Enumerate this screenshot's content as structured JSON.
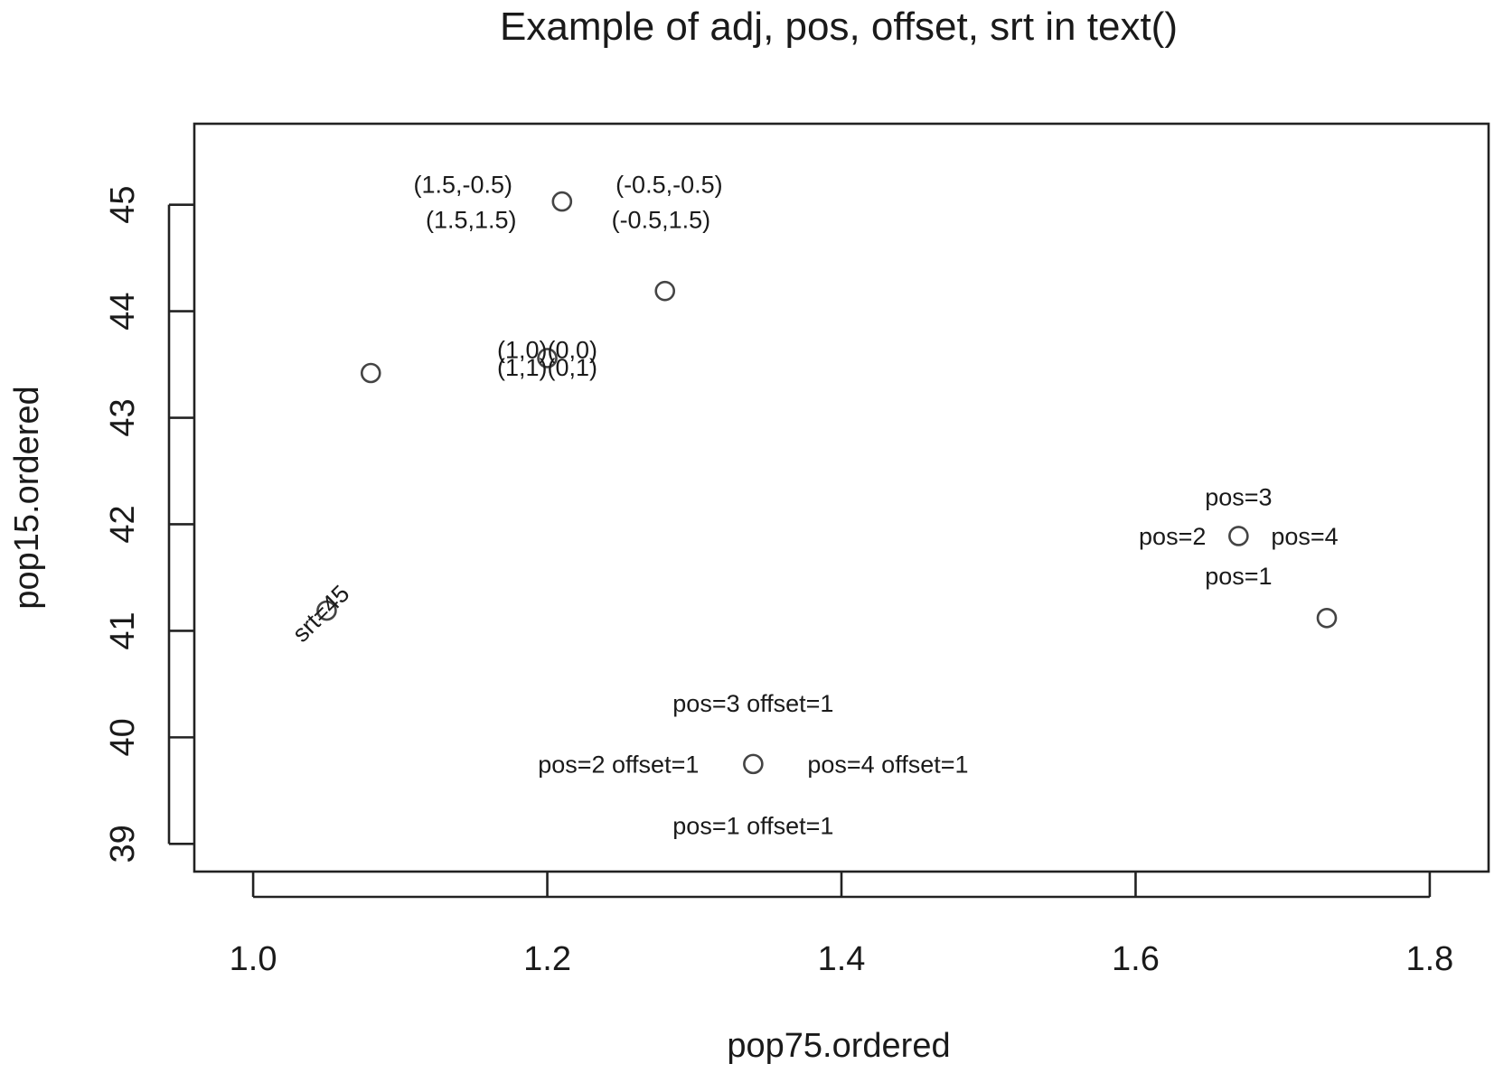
{
  "chart_data": {
    "type": "scatter",
    "title": "Example of adj, pos, offset, srt in text()",
    "xlabel": "pop75.ordered",
    "ylabel": "pop15.ordered",
    "xlim": [
      0.96,
      1.84
    ],
    "ylim": [
      38.74,
      45.76
    ],
    "xticks": [
      1.0,
      1.2,
      1.4,
      1.6,
      1.8
    ],
    "xtick_labels": [
      "1.0",
      "1.2",
      "1.4",
      "1.6",
      "1.8"
    ],
    "yticks": [
      39,
      40,
      41,
      42,
      43,
      44,
      45
    ],
    "ytick_labels": [
      "39",
      "40",
      "41",
      "42",
      "43",
      "44",
      "45"
    ],
    "grid": false,
    "point_style": "open-circle",
    "points": [
      {
        "x": 1.05,
        "y": 41.19
      },
      {
        "x": 1.08,
        "y": 43.42
      },
      {
        "x": 1.2,
        "y": 43.56
      },
      {
        "x": 1.21,
        "y": 45.03
      },
      {
        "x": 1.28,
        "y": 44.19
      },
      {
        "x": 1.34,
        "y": 39.75
      },
      {
        "x": 1.67,
        "y": 41.89
      },
      {
        "x": 1.73,
        "y": 41.12
      }
    ],
    "annotations": [
      {
        "text": "(1.5,-0.5)",
        "point": 3,
        "adj": [
          1.5,
          -0.5
        ]
      },
      {
        "text": "(1.5,1.5)",
        "point": 3,
        "adj": [
          1.5,
          1.5
        ]
      },
      {
        "text": "(-0.5,-0.5)",
        "point": 3,
        "adj": [
          -0.5,
          -0.5
        ]
      },
      {
        "text": "(-0.5,1.5)",
        "point": 3,
        "adj": [
          -0.5,
          1.5
        ]
      },
      {
        "text": "(1,0)",
        "point": 2,
        "adj": [
          1,
          0
        ]
      },
      {
        "text": "(0,0)",
        "point": 2,
        "adj": [
          0,
          0
        ]
      },
      {
        "text": "(1,1)",
        "point": 2,
        "adj": [
          1,
          1
        ]
      },
      {
        "text": "(0,1)",
        "point": 2,
        "adj": [
          0,
          1
        ]
      },
      {
        "text": "srt=45",
        "point": 0,
        "srt": 45
      },
      {
        "text": "pos=3",
        "point": 6,
        "pos": 3
      },
      {
        "text": "pos=2",
        "point": 6,
        "pos": 2
      },
      {
        "text": "pos=4",
        "point": 6,
        "pos": 4
      },
      {
        "text": "pos=1",
        "point": 6,
        "pos": 1
      },
      {
        "text": "pos=3 offset=1",
        "point": 5,
        "pos": 3,
        "offset": 1
      },
      {
        "text": "pos=2 offset=1",
        "point": 5,
        "pos": 2,
        "offset": 1
      },
      {
        "text": "pos=4 offset=1",
        "point": 5,
        "pos": 4,
        "offset": 1
      },
      {
        "text": "pos=1 offset=1",
        "point": 5,
        "pos": 1,
        "offset": 1
      }
    ]
  }
}
